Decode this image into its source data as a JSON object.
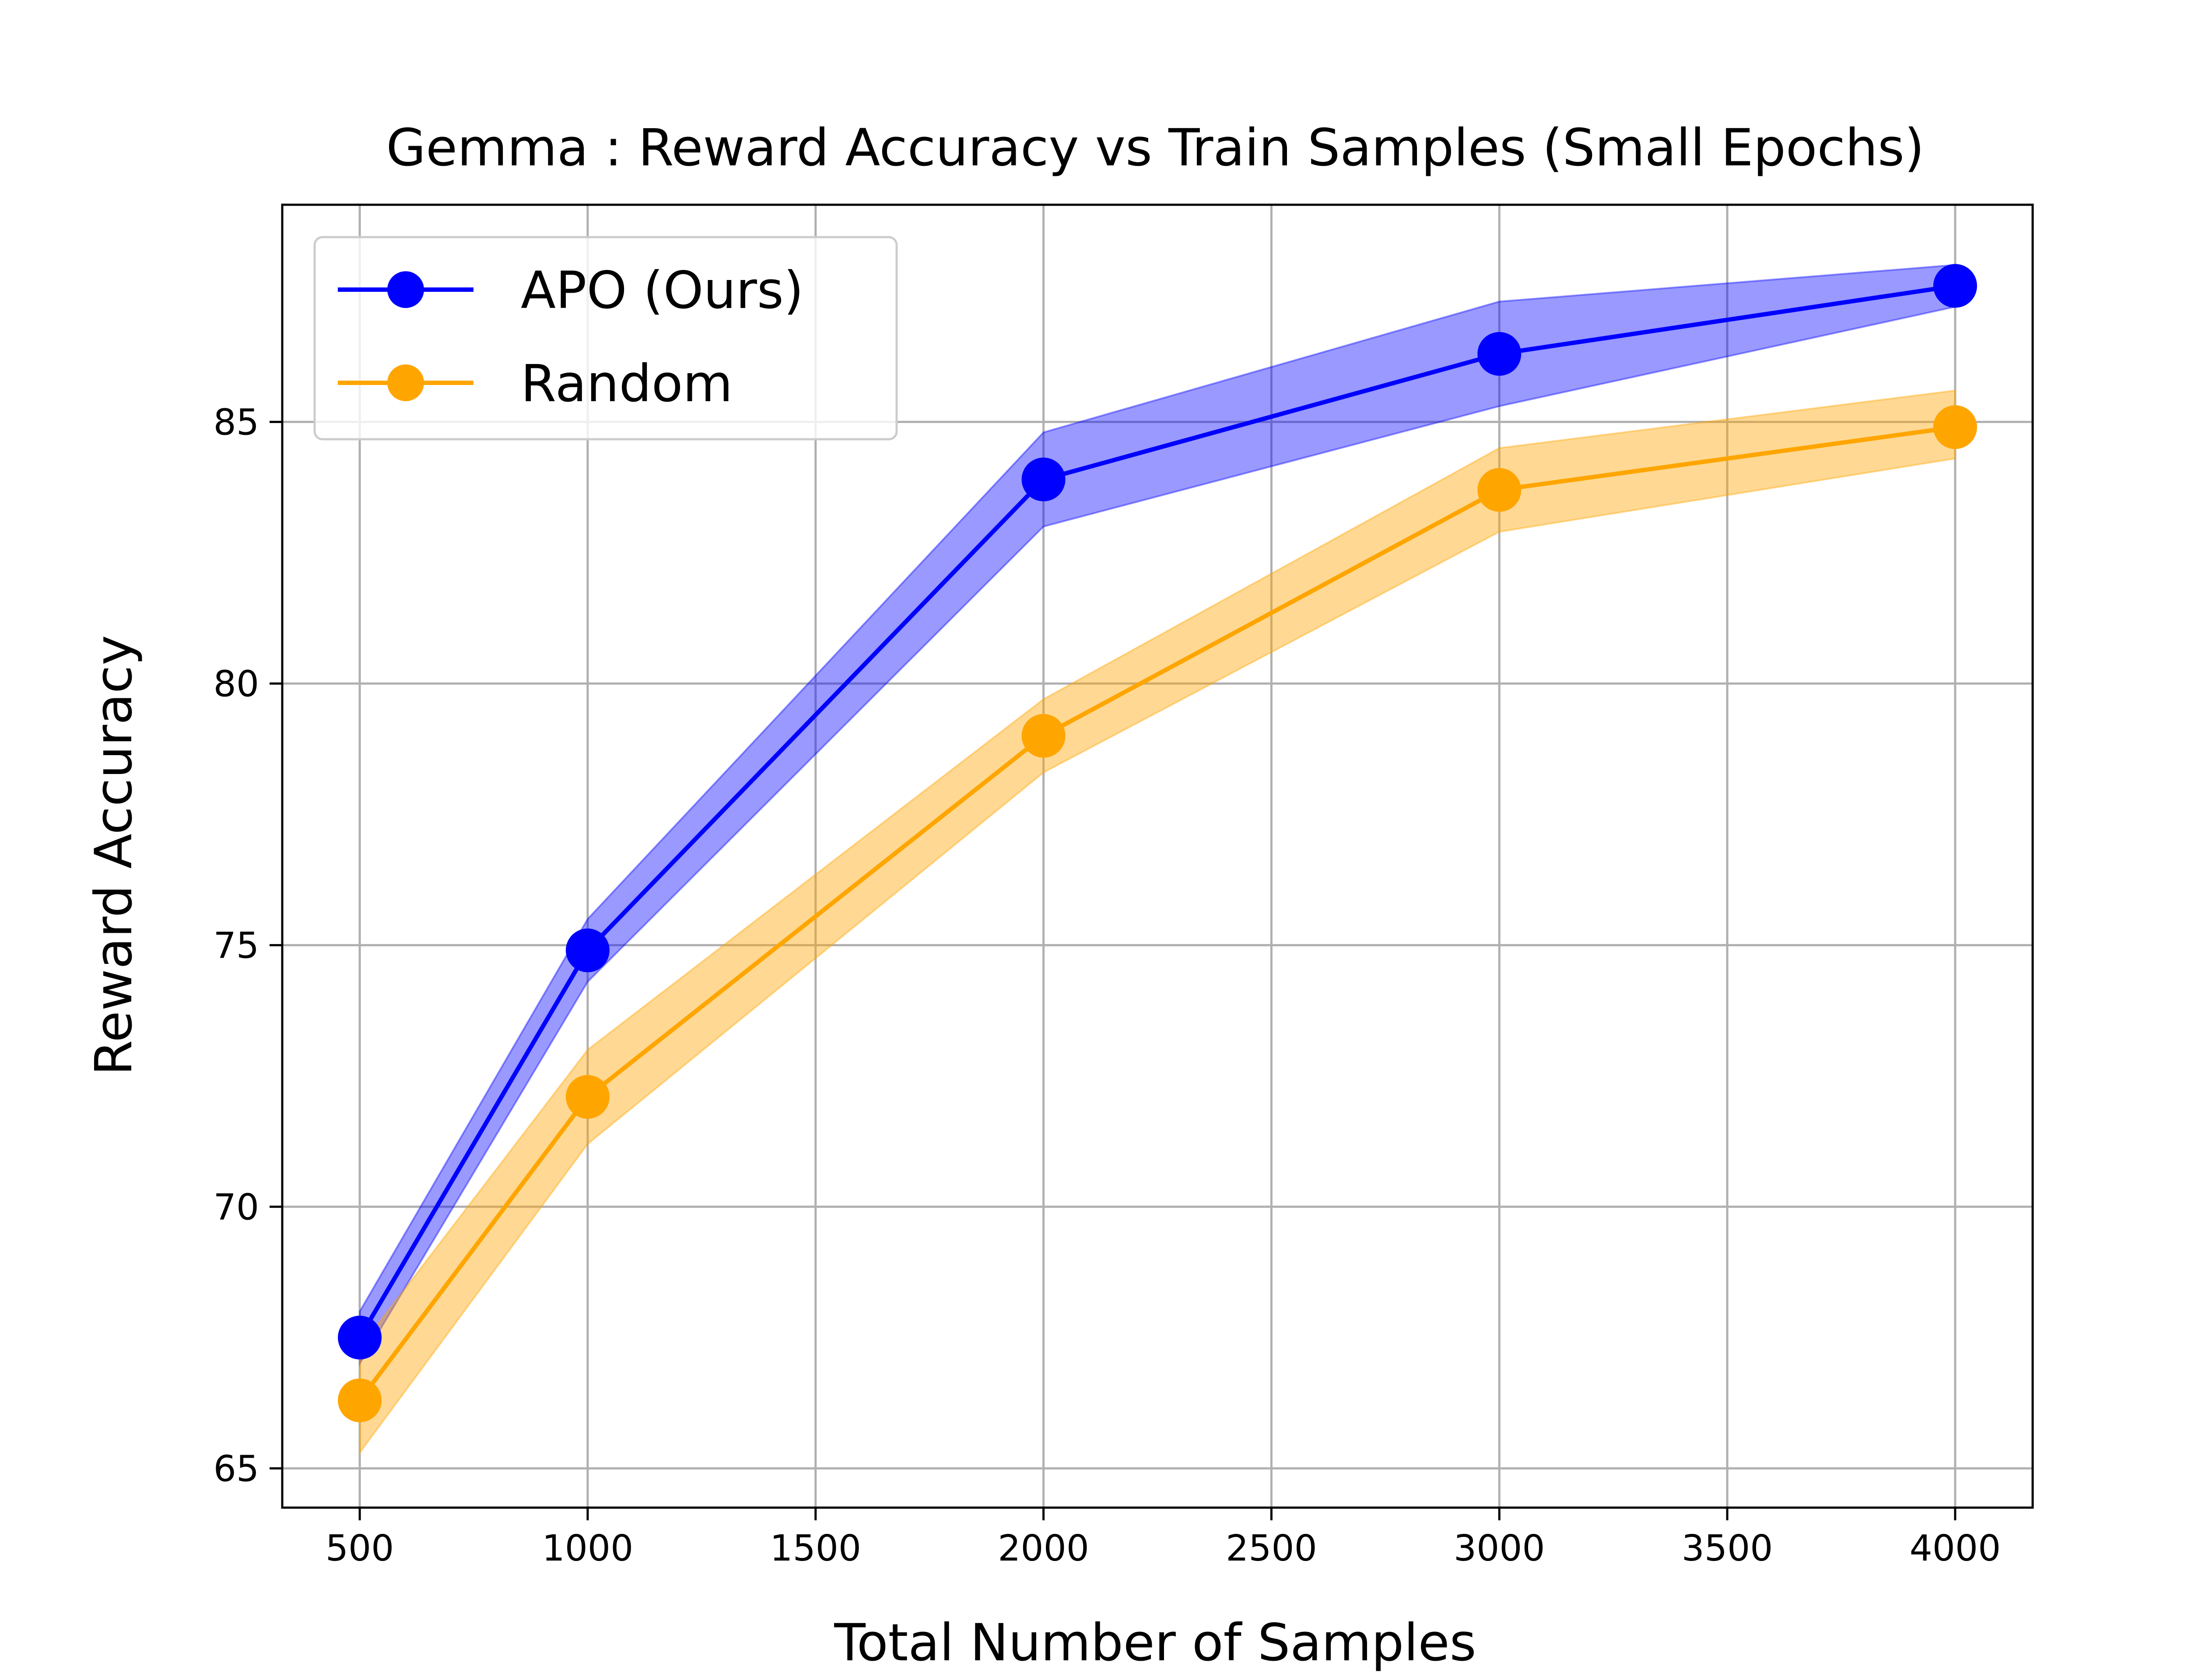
{
  "chart_data": {
    "type": "line",
    "title": "Gemma : Reward Accuracy vs Train Samples (Small Epochs)",
    "xlabel": "Total Number of Samples",
    "ylabel": "Reward Accuracy",
    "xlim": [
      330,
      4170
    ],
    "ylim": [
      64.25,
      89.15
    ],
    "xticks": [
      500,
      1000,
      1500,
      2000,
      2500,
      3000,
      3500,
      4000
    ],
    "yticks": [
      65,
      70,
      75,
      80,
      85
    ],
    "grid": true,
    "legend_position": "upper left",
    "x": [
      500,
      1000,
      2000,
      3000,
      4000
    ],
    "series": [
      {
        "name": "APO (Ours)",
        "color": "#0000ff",
        "marker": "circle",
        "values": [
          67.5,
          74.9,
          83.9,
          86.3,
          87.6
        ],
        "band_lower": [
          67.0,
          74.3,
          83.0,
          85.3,
          87.2
        ],
        "band_upper": [
          68.0,
          75.5,
          84.8,
          87.3,
          88.0
        ]
      },
      {
        "name": "Random",
        "color": "#ffa500",
        "marker": "circle",
        "values": [
          66.3,
          72.1,
          79.0,
          83.7,
          84.9
        ],
        "band_lower": [
          65.3,
          71.2,
          78.3,
          82.9,
          84.3
        ],
        "band_upper": [
          67.3,
          73.0,
          79.7,
          84.5,
          85.6
        ]
      }
    ]
  }
}
